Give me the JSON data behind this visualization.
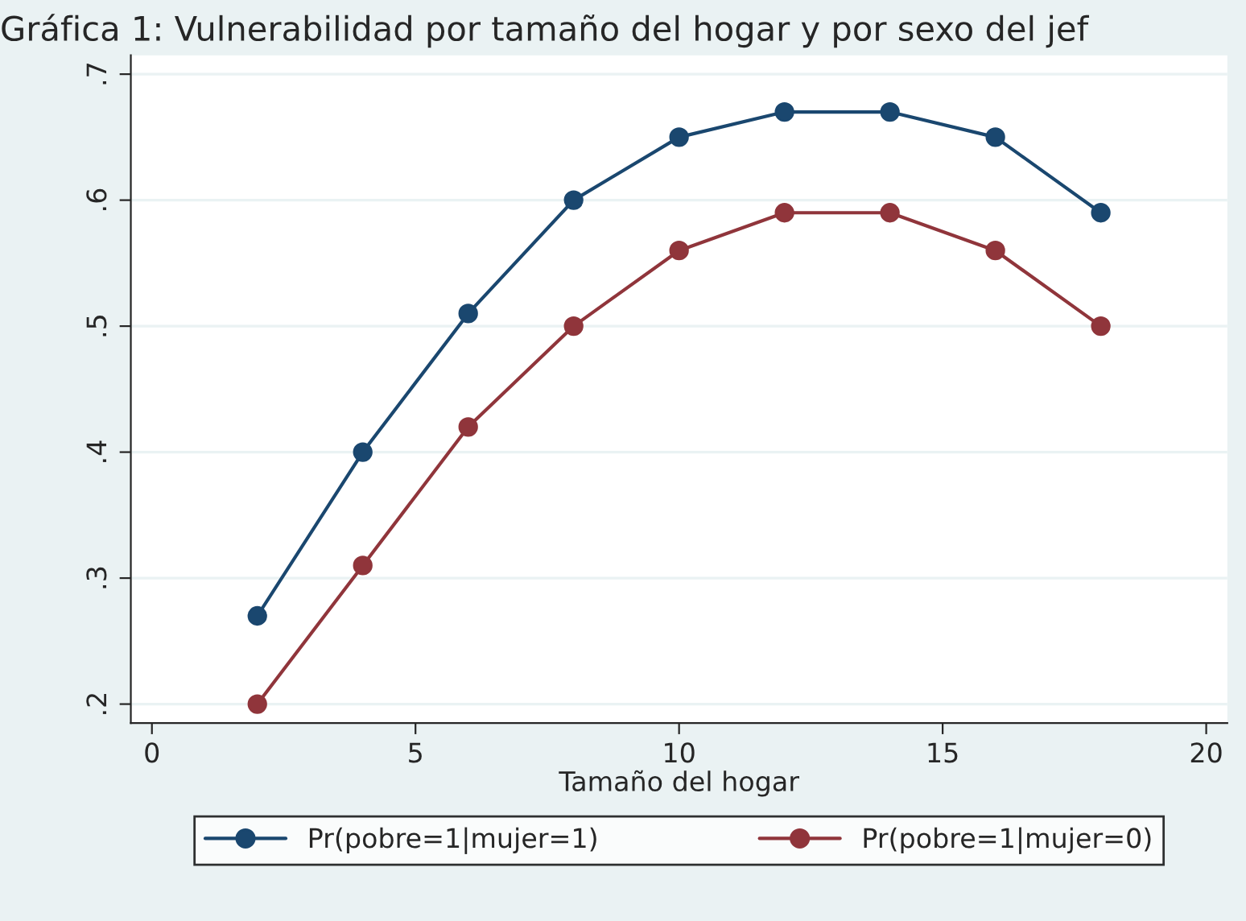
{
  "chart_data": {
    "type": "line",
    "title": "Gráfica 1: Vulnerabilidad por tamaño del hogar y por sexo del jef",
    "xlabel": "Tamaño del hogar",
    "x": [
      2,
      4,
      6,
      8,
      10,
      12,
      14,
      16,
      18
    ],
    "series": [
      {
        "name": "Pr(pobre=1|mujer=1)",
        "color": "#1a476f",
        "values": [
          0.27,
          0.4,
          0.51,
          0.6,
          0.65,
          0.67,
          0.67,
          0.65,
          0.59
        ]
      },
      {
        "name": "Pr(pobre=1|mujer=0)",
        "color": "#90353b",
        "values": [
          0.2,
          0.31,
          0.42,
          0.5,
          0.56,
          0.59,
          0.59,
          0.56,
          0.5
        ]
      }
    ],
    "xlim": [
      -0.4,
      20.4
    ],
    "xticks": [
      0,
      5,
      10,
      15,
      20
    ],
    "ylim": [
      0.185,
      0.715
    ],
    "yticks": [
      {
        "value": 0.2,
        "label": ".2"
      },
      {
        "value": 0.3,
        "label": ".3"
      },
      {
        "value": 0.4,
        "label": ".4"
      },
      {
        "value": 0.5,
        "label": ".5"
      },
      {
        "value": 0.6,
        "label": ".6"
      },
      {
        "value": 0.7,
        "label": ".7"
      }
    ],
    "grid": "y",
    "legend": "bottom",
    "marker": "circle",
    "line_style": "solid"
  }
}
